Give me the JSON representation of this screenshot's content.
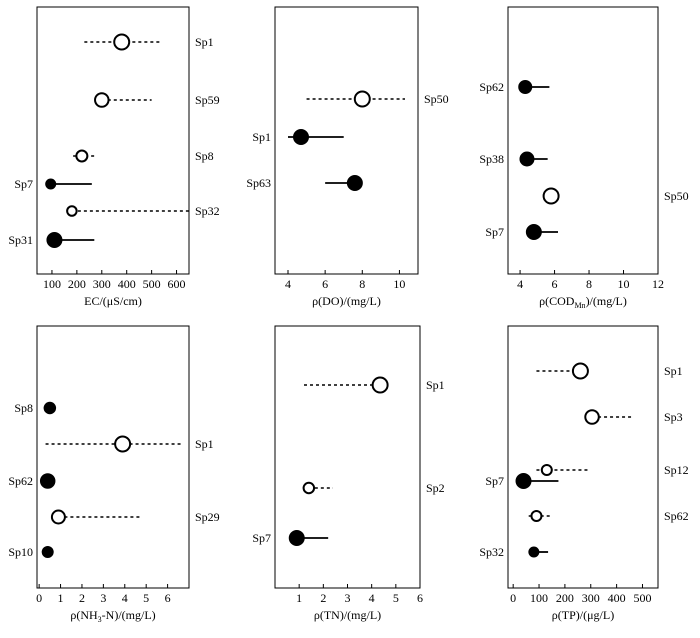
{
  "chart_data": [
    {
      "type": "scatter",
      "xlabel": "EC/(μS/cm)",
      "xlim": [
        40,
        650
      ],
      "xticks": [
        100,
        200,
        300,
        400,
        500,
        600
      ],
      "items": [
        {
          "label": "Sp1",
          "side": "right",
          "filled": false,
          "value": 380,
          "low": 230,
          "high": 540,
          "size": 1.0
        },
        {
          "label": "Sp59",
          "side": "right",
          "filled": false,
          "value": 300,
          "low": 300,
          "high": 500,
          "size": 0.85
        },
        {
          "label": "Sp8",
          "side": "right",
          "filled": false,
          "value": 220,
          "low": 185,
          "high": 275,
          "size": 0.6
        },
        {
          "label": "Sp7",
          "side": "left",
          "filled": true,
          "value": 95,
          "low": 95,
          "high": 260,
          "size": 0.5
        },
        {
          "label": "Sp32",
          "side": "right",
          "filled": false,
          "value": 180,
          "low": 180,
          "high": 650,
          "size": 0.45
        },
        {
          "label": "Sp31",
          "side": "left",
          "filled": true,
          "value": 110,
          "low": 110,
          "high": 270,
          "size": 1.0
        }
      ]
    },
    {
      "type": "scatter",
      "xlabel": "ρ(DO)/(mg/L)",
      "xlim": [
        3.3,
        11
      ],
      "xticks": [
        4,
        6,
        8,
        10
      ],
      "items": [
        {
          "label": "Sp50",
          "side": "right",
          "filled": false,
          "value": 8.0,
          "low": 5.0,
          "high": 10.3,
          "size": 1.0
        },
        {
          "label": "Sp1",
          "side": "left",
          "filled": true,
          "value": 4.7,
          "low": 4.0,
          "high": 7.0,
          "size": 1.0
        },
        {
          "label": "Sp63",
          "side": "left",
          "filled": true,
          "value": 7.6,
          "low": 6.0,
          "high": 7.6,
          "size": 1.0
        }
      ]
    },
    {
      "type": "scatter",
      "xlabel": "ρ(COD",
      "xlabel_sub": "Mn",
      "xlabel_tail": ")/(mg/L)",
      "xlim": [
        3.3,
        12
      ],
      "xticks": [
        4,
        6,
        8,
        10,
        12
      ],
      "items": [
        {
          "label": "Sp62",
          "side": "left",
          "filled": true,
          "value": 4.3,
          "low": 4.3,
          "high": 5.7,
          "size": 0.8
        },
        {
          "label": "Sp38",
          "side": "left",
          "filled": true,
          "value": 4.4,
          "low": 4.4,
          "high": 5.6,
          "size": 0.9
        },
        {
          "label": "Sp50",
          "side": "right",
          "filled": false,
          "value": 5.8,
          "low": 5.8,
          "high": 5.8,
          "size": 1.0
        },
        {
          "label": "Sp7",
          "side": "left",
          "filled": true,
          "value": 4.8,
          "low": 4.8,
          "high": 6.2,
          "size": 1.0
        }
      ]
    },
    {
      "type": "scatter",
      "xlabel": "ρ(NH",
      "xlabel_sub": "3",
      "xlabel_tail": "-N)/(mg/L)",
      "xlim": [
        -0.1,
        7.0
      ],
      "xticks": [
        0,
        1,
        2,
        3,
        4,
        5,
        6
      ],
      "items": [
        {
          "label": "Sp8",
          "side": "left",
          "filled": true,
          "value": 0.5,
          "low": 0.5,
          "high": 0.5,
          "size": 0.65
        },
        {
          "label": "Sp1",
          "side": "right",
          "filled": false,
          "value": 3.9,
          "low": 0.3,
          "high": 6.7,
          "size": 1.0
        },
        {
          "label": "Sp62",
          "side": "left",
          "filled": true,
          "value": 0.4,
          "low": 0.4,
          "high": 0.4,
          "size": 0.95
        },
        {
          "label": "Sp29",
          "side": "right",
          "filled": false,
          "value": 0.9,
          "low": 0.9,
          "high": 4.7,
          "size": 0.8
        },
        {
          "label": "Sp10",
          "side": "left",
          "filled": true,
          "value": 0.4,
          "low": 0.4,
          "high": 0.4,
          "size": 0.6
        }
      ]
    },
    {
      "type": "scatter",
      "xlabel": "ρ(TN)/(mg/L)",
      "xlim": [
        0,
        6
      ],
      "xticks": [
        1,
        2,
        3,
        4,
        5,
        6
      ],
      "items": [
        {
          "label": "Sp1",
          "side": "right",
          "filled": false,
          "value": 4.35,
          "low": 1.2,
          "high": 4.35,
          "size": 1.0
        },
        {
          "label": "Sp2",
          "side": "right",
          "filled": false,
          "value": 1.4,
          "low": 1.4,
          "high": 2.4,
          "size": 0.55
        },
        {
          "label": "Sp7",
          "side": "left",
          "filled": true,
          "value": 0.9,
          "low": 0.9,
          "high": 2.2,
          "size": 1.0
        }
      ]
    },
    {
      "type": "scatter",
      "xlabel": "ρ(TP)/(μg/L)",
      "xlim": [
        -20,
        560
      ],
      "xticks": [
        0,
        100,
        200,
        300,
        400,
        500
      ],
      "items": [
        {
          "label": "Sp1",
          "side": "right",
          "filled": false,
          "value": 260,
          "low": 90,
          "high": 260,
          "size": 1.0
        },
        {
          "label": "Sp3",
          "side": "right",
          "filled": false,
          "value": 305,
          "low": 305,
          "high": 460,
          "size": 0.85
        },
        {
          "label": "Sp12",
          "side": "right",
          "filled": false,
          "value": 130,
          "low": 90,
          "high": 295,
          "size": 0.5
        },
        {
          "label": "Sp7",
          "side": "left",
          "filled": true,
          "value": 40,
          "low": 40,
          "high": 175,
          "size": 1.0
        },
        {
          "label": "Sp62",
          "side": "right",
          "filled": false,
          "value": 90,
          "low": 60,
          "high": 145,
          "size": 0.5
        },
        {
          "label": "Sp32",
          "side": "left",
          "filled": true,
          "value": 80,
          "low": 80,
          "high": 135,
          "size": 0.5
        }
      ]
    }
  ]
}
